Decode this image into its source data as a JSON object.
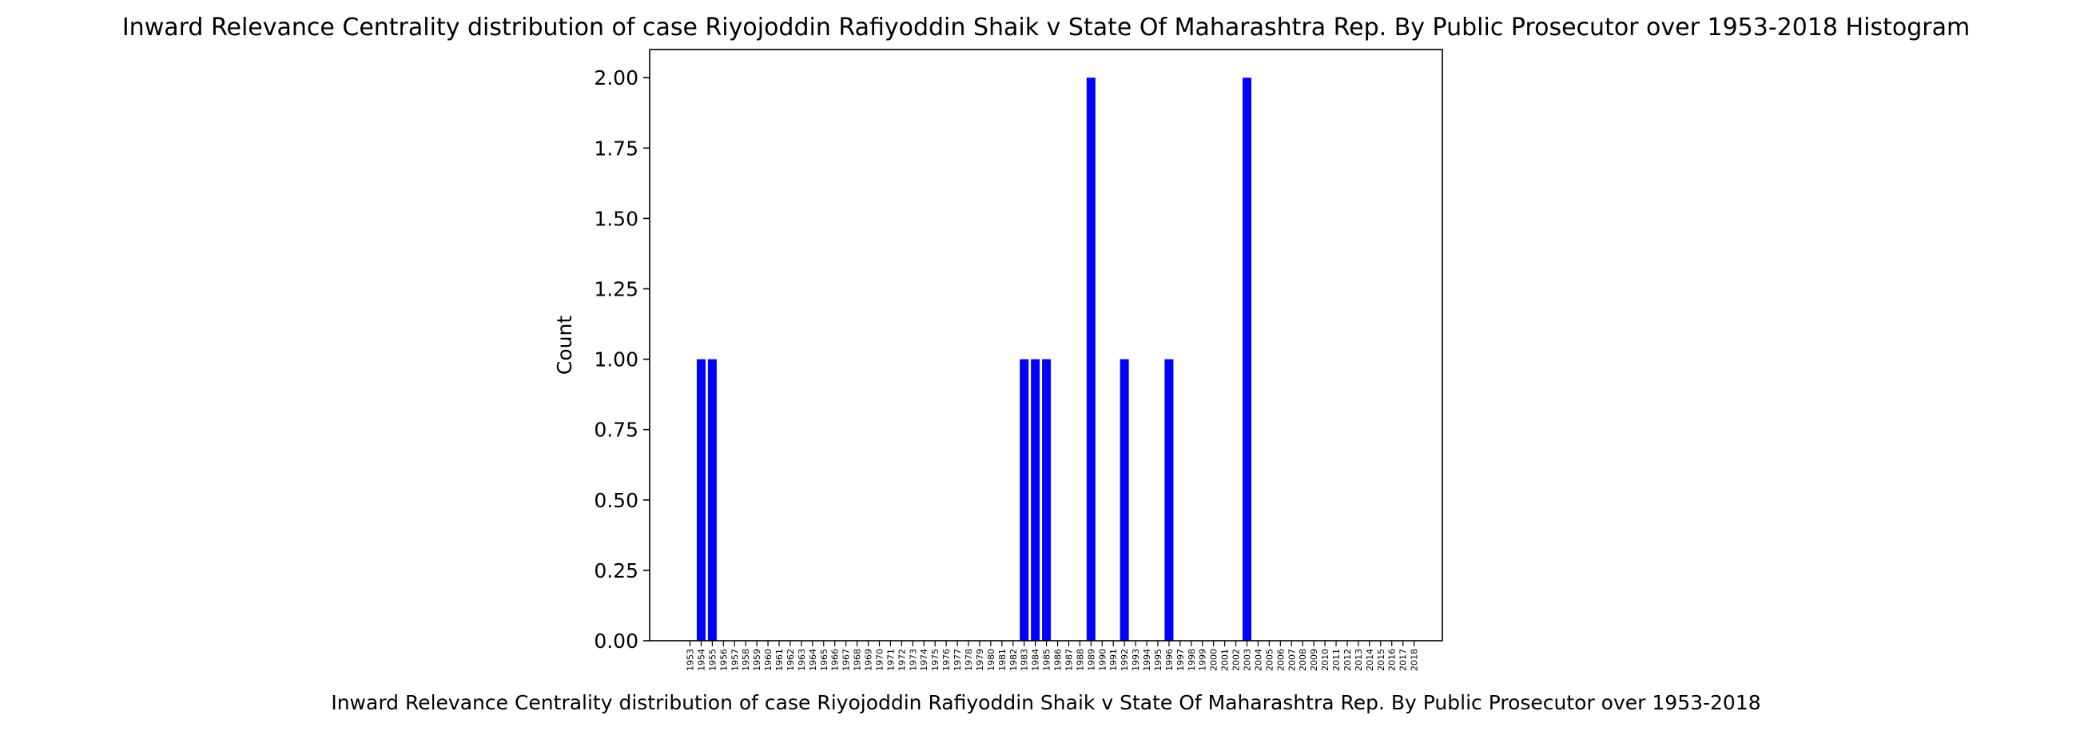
{
  "chart_data": {
    "type": "bar",
    "title": "Inward Relevance Centrality distribution of case Riyojoddin Rafiyoddin Shaik v State Of Maharashtra Rep. By Public Prosecutor over 1953-2018 Histogram",
    "xlabel": "Inward Relevance Centrality distribution of case Riyojoddin Rafiyoddin Shaik v State Of Maharashtra Rep. By Public Prosecutor over 1953-2018",
    "ylabel": "Count",
    "categories": [
      "1953",
      "1954",
      "1955",
      "1956",
      "1957",
      "1958",
      "1959",
      "1960",
      "1961",
      "1962",
      "1963",
      "1964",
      "1965",
      "1966",
      "1967",
      "1968",
      "1969",
      "1970",
      "1971",
      "1972",
      "1973",
      "1974",
      "1975",
      "1976",
      "1977",
      "1978",
      "1979",
      "1980",
      "1981",
      "1982",
      "1983",
      "1984",
      "1985",
      "1986",
      "1987",
      "1988",
      "1989",
      "1990",
      "1991",
      "1992",
      "1993",
      "1994",
      "1995",
      "1996",
      "1997",
      "1998",
      "1999",
      "2000",
      "2001",
      "2002",
      "2003",
      "2004",
      "2005",
      "2006",
      "2007",
      "2008",
      "2009",
      "2010",
      "2011",
      "2012",
      "2013",
      "2014",
      "2015",
      "2016",
      "2017",
      "2018"
    ],
    "values": [
      0,
      1,
      1,
      0,
      0,
      0,
      0,
      0,
      0,
      0,
      0,
      0,
      0,
      0,
      0,
      0,
      0,
      0,
      0,
      0,
      0,
      0,
      0,
      0,
      0,
      0,
      0,
      0,
      0,
      0,
      1,
      1,
      1,
      0,
      0,
      0,
      2,
      0,
      0,
      1,
      0,
      0,
      0,
      1,
      0,
      0,
      0,
      0,
      0,
      0,
      2,
      0,
      0,
      0,
      0,
      0,
      0,
      0,
      0,
      0,
      0,
      0,
      0,
      0,
      0,
      0
    ],
    "ylim": [
      0,
      2.1
    ],
    "yticks": [
      "0.00",
      "0.25",
      "0.50",
      "0.75",
      "1.00",
      "1.25",
      "1.50",
      "1.75",
      "2.00"
    ],
    "bar_color": "#0000ff",
    "grid": false
  }
}
